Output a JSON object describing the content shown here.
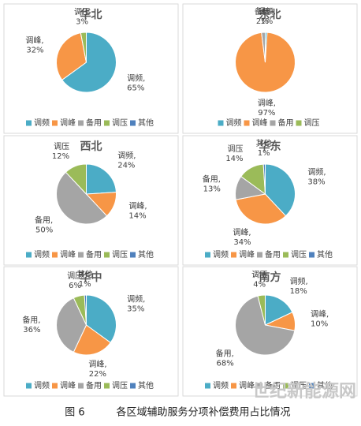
{
  "chart_data": [
    {
      "type": "pie",
      "title": "华北",
      "categories": [
        "调频",
        "调峰",
        "备用",
        "调压",
        "其他"
      ],
      "values": [
        65,
        32,
        0,
        3,
        0
      ],
      "value_labels": [
        "调频,\n65%",
        "调峰,\n32%",
        null,
        "调压\n3%",
        null
      ],
      "colors": [
        "#4bacc6",
        "#f79646",
        "#a5a5a5",
        "#9bbb59",
        "#4f81bd"
      ]
    },
    {
      "type": "pie",
      "title": "东北",
      "categories": [
        "调频",
        "调峰",
        "备用",
        "调压"
      ],
      "values": [
        1,
        97,
        2,
        0
      ],
      "value_labels": [
        "调频,\n1%",
        "调峰,\n97%",
        "备用\n2%",
        null
      ],
      "colors": [
        "#4bacc6",
        "#f79646",
        "#a5a5a5",
        "#9bbb59"
      ]
    },
    {
      "type": "pie",
      "title": "西北",
      "categories": [
        "调频",
        "调峰",
        "备用",
        "调压",
        "其他"
      ],
      "values": [
        24,
        14,
        50,
        12,
        0
      ],
      "value_labels": [
        "调频,\n24%",
        "调峰,\n14%",
        "备用,\n50%",
        "调压\n12%",
        null
      ],
      "colors": [
        "#4bacc6",
        "#f79646",
        "#a5a5a5",
        "#9bbb59",
        "#4f81bd"
      ]
    },
    {
      "type": "pie",
      "title": "华东",
      "categories": [
        "调频",
        "调峰",
        "备用",
        "调压",
        "其他"
      ],
      "values": [
        38,
        34,
        13,
        14,
        1
      ],
      "value_labels": [
        "调频,\n38%",
        "调峰,\n34%",
        "备用,\n13%",
        "调压\n14%",
        "其他\n1%"
      ],
      "colors": [
        "#4bacc6",
        "#f79646",
        "#a5a5a5",
        "#9bbb59",
        "#4f81bd"
      ]
    },
    {
      "type": "pie",
      "title": "华中",
      "categories": [
        "调频",
        "调峰",
        "备用",
        "调压",
        "其他"
      ],
      "values": [
        35,
        22,
        36,
        6,
        1
      ],
      "value_labels": [
        "调频,\n35%",
        "调峰,\n22%",
        "备用,\n36%",
        "调压\n6%",
        "其他\n1%"
      ],
      "colors": [
        "#4bacc6",
        "#f79646",
        "#a5a5a5",
        "#9bbb59",
        "#4f81bd"
      ]
    },
    {
      "type": "pie",
      "title": "南方",
      "categories": [
        "调频",
        "调峰",
        "备用",
        "调压",
        "其他"
      ],
      "values": [
        18,
        10,
        68,
        4,
        0
      ],
      "value_labels": [
        "调频,\n18%",
        "调峰,\n10%",
        "备用,\n68%",
        "调压\n4%",
        null
      ],
      "colors": [
        "#4bacc6",
        "#f79646",
        "#a5a5a5",
        "#9bbb59",
        "#4f81bd"
      ]
    }
  ],
  "caption": {
    "label": "图 6",
    "text": "各区域辅助服务分项补偿费用占比情况"
  },
  "watermark": "世纪新能源网"
}
